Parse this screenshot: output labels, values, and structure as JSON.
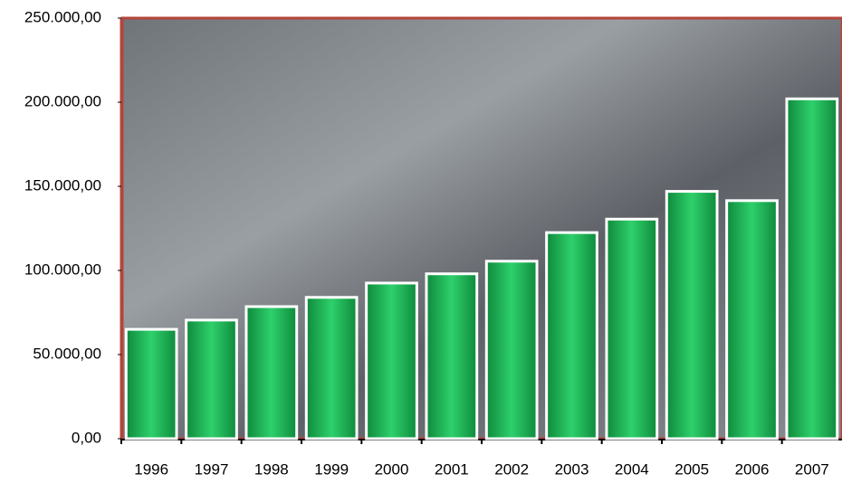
{
  "chart_data": {
    "type": "bar",
    "categories": [
      "1996",
      "1997",
      "1998",
      "1999",
      "2000",
      "2001",
      "2002",
      "2003",
      "2004",
      "2005",
      "2006",
      "2007"
    ],
    "values": [
      65000,
      70500,
      78500,
      84000,
      92500,
      98000,
      105500,
      122500,
      130500,
      147000,
      141500,
      202000
    ],
    "color": "#1db95a",
    "ylim": [
      0,
      250000
    ],
    "yticks": [
      {
        "value": 0,
        "label": "0,00"
      },
      {
        "value": 50000,
        "label": "50.000,00"
      },
      {
        "value": 100000,
        "label": "100.000,00"
      },
      {
        "value": 150000,
        "label": "150.000,00"
      },
      {
        "value": 200000,
        "label": "200.000,00"
      },
      {
        "value": 250000,
        "label": "250.000,00"
      }
    ]
  }
}
